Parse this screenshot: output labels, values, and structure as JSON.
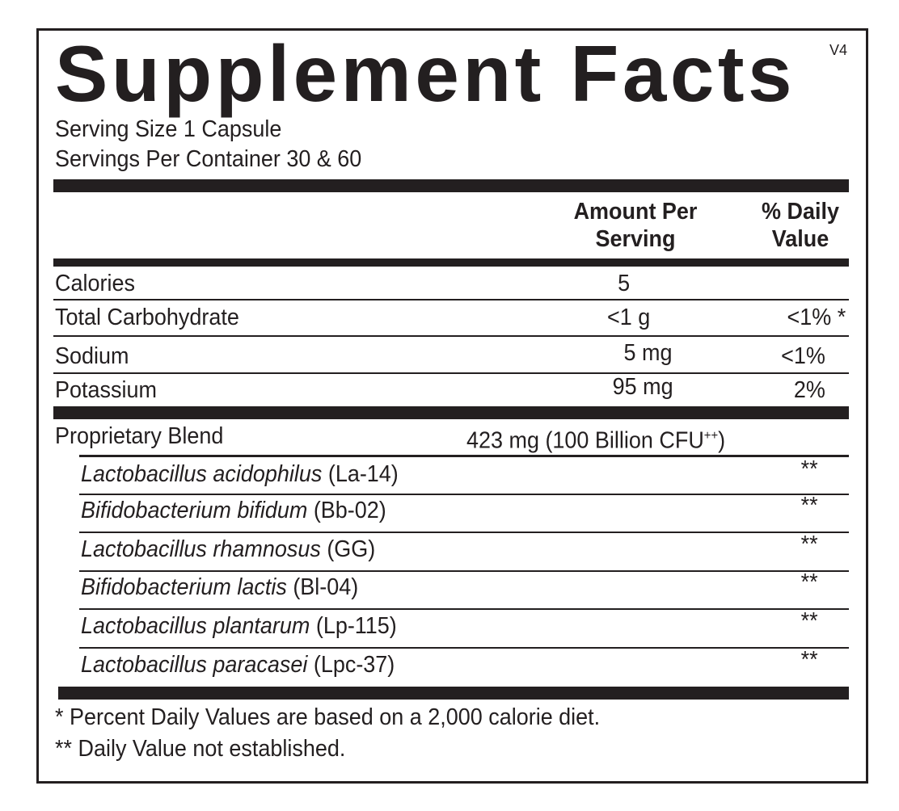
{
  "title": "Supplement Facts",
  "version": "V4",
  "serving_size": "Serving Size 1 Capsule",
  "servings_per_container": "Servings Per Container 30 & 60",
  "header": {
    "amount_line1": "Amount Per",
    "amount_line2": "Serving",
    "dv_line1": "% Daily",
    "dv_line2": "Value"
  },
  "nutrients": [
    {
      "name": "Calories",
      "amount": "5",
      "dv": ""
    },
    {
      "name": "Total Carbohydrate",
      "amount": "<1 g",
      "dv": "<1% *"
    },
    {
      "name": "Sodium",
      "amount": "5 mg",
      "dv": "<1%"
    },
    {
      "name": "Potassium",
      "amount": "95 mg",
      "dv": "2%"
    }
  ],
  "blend": {
    "name": "Proprietary Blend",
    "amount": "423 mg (100 Billion CFU",
    "amount_sup": "++",
    "amount_close": ")"
  },
  "ingredients": [
    {
      "species": "Lactobacillus acidophilus",
      "strain": " (La-14)",
      "dv": "**"
    },
    {
      "species": "Bifidobacterium bifidum",
      "strain": " (Bb-02)",
      "dv": "**"
    },
    {
      "species": "Lactobacillus rhamnosus",
      "strain": " (GG)",
      "dv": "**"
    },
    {
      "species": "Bifidobacterium lactis",
      "strain": " (Bl-04)",
      "dv": "**"
    },
    {
      "species": "Lactobacillus plantarum",
      "strain": " (Lp-115)",
      "dv": "**"
    },
    {
      "species": "Lactobacillus paracasei",
      "strain": " (Lpc-37)",
      "dv": "**"
    }
  ],
  "footnotes": [
    "* Percent Daily Values are based on a 2,000 calorie diet.",
    "** Daily Value not established."
  ]
}
